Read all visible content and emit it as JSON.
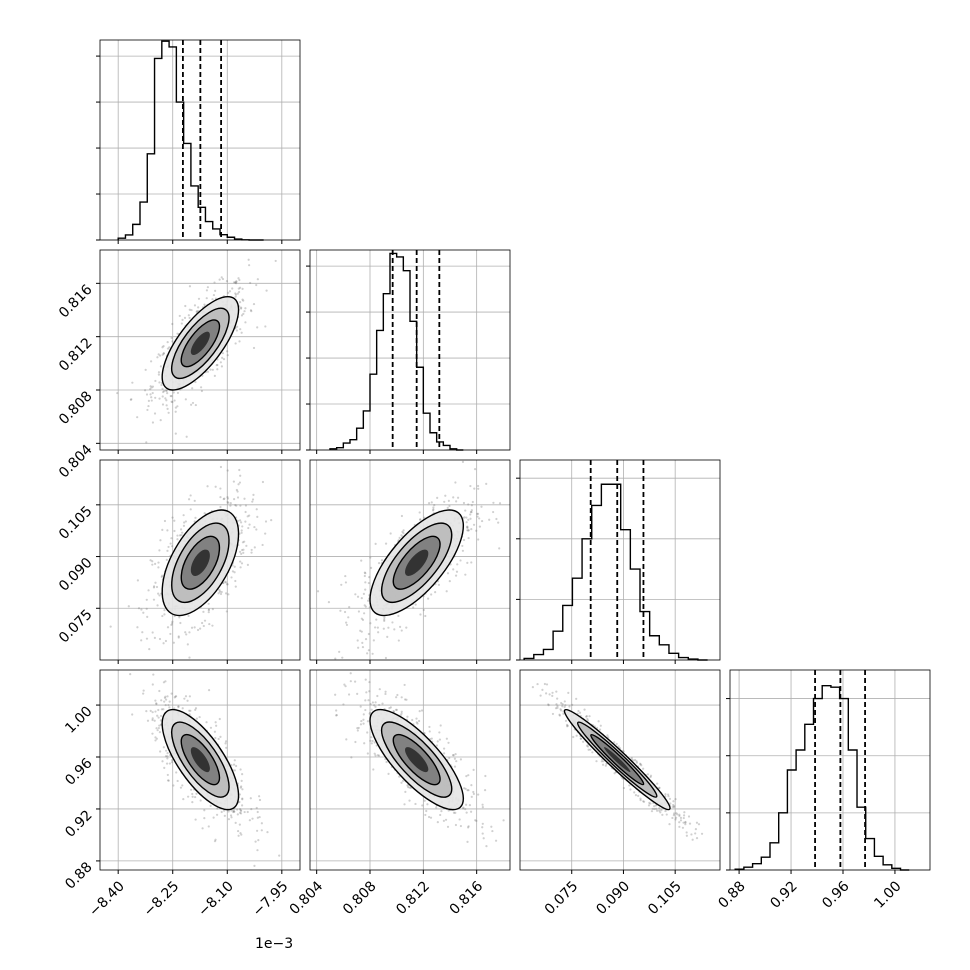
{
  "chart_data": {
    "type": "corner",
    "parameters": [
      {
        "range": [
          -8.45,
          -7.9
        ],
        "ticks": [
          -8.4,
          -8.25,
          -8.1,
          -7.95
        ],
        "tick_labels": [
          "−8.40",
          "−8.25",
          "−8.10",
          "−7.95"
        ],
        "offset_label": "1e−3",
        "hist_ticks": [
          0,
          200,
          400,
          600,
          800
        ],
        "hist_max": 870,
        "quantiles": [
          -8.222,
          -8.174,
          -8.117
        ],
        "hist_edges_start": -8.4,
        "hist_bin_width": 0.02,
        "hist_counts": [
          8,
          22,
          68,
          165,
          375,
          790,
          865,
          840,
          600,
          420,
          235,
          142,
          80,
          48,
          23,
          12,
          4,
          1,
          0,
          0
        ]
      },
      {
        "range": [
          0.8035,
          0.8185
        ],
        "ticks": [
          0.804,
          0.808,
          0.812,
          0.816
        ],
        "tick_labels": [
          "0.804",
          "0.808",
          "0.812",
          "0.816"
        ],
        "offset_label": "",
        "hist_ticks": [
          0,
          200,
          400,
          600,
          800
        ],
        "hist_max": 870,
        "quantiles": [
          0.8097,
          0.8115,
          0.8132
        ],
        "hist_edges_start": 0.805,
        "hist_bin_width": 0.0005,
        "hist_counts": [
          5,
          10,
          30,
          45,
          95,
          170,
          330,
          520,
          680,
          855,
          840,
          780,
          560,
          360,
          160,
          75,
          35,
          20,
          5,
          0
        ]
      },
      {
        "range": [
          0.06,
          0.118
        ],
        "ticks": [
          0.075,
          0.09,
          0.105
        ],
        "tick_labels": [
          "0.075",
          "0.090",
          "0.105"
        ],
        "offset_label": "",
        "hist_ticks": [
          0,
          200,
          400,
          600
        ],
        "hist_max": 660,
        "quantiles": [
          0.0805,
          0.0882,
          0.0958
        ],
        "hist_edges_start": 0.0612,
        "hist_bin_width": 0.0028,
        "hist_counts": [
          5,
          18,
          35,
          95,
          180,
          270,
          400,
          510,
          580,
          580,
          430,
          300,
          160,
          80,
          50,
          22,
          8,
          3,
          0
        ]
      },
      {
        "range": [
          0.873,
          1.027
        ],
        "ticks": [
          0.88,
          0.92,
          0.96,
          1.0
        ],
        "tick_labels": [
          "0.88",
          "0.92",
          "0.96",
          "1.00"
        ],
        "offset_label": "",
        "hist_ticks": [
          0,
          200,
          400,
          600
        ],
        "hist_max": 700,
        "quantiles": [
          0.9385,
          0.958,
          0.977
        ],
        "hist_edges_start": 0.877,
        "hist_bin_width": 0.0067,
        "hist_counts": [
          3,
          10,
          22,
          45,
          95,
          200,
          350,
          420,
          510,
          600,
          645,
          640,
          600,
          420,
          220,
          110,
          48,
          18,
          6,
          0
        ]
      }
    ],
    "correlations": {
      "1-0": 0.72,
      "2-0": 0.55,
      "2-1": 0.7,
      "3-0": -0.72,
      "3-1": -0.78,
      "3-2": -0.97
    },
    "contour_levels_sigma": [
      0.5,
      1.0,
      1.5,
      2.0
    ],
    "grid": true,
    "colors": {
      "line": "#000000",
      "grid": "#b0b0b0",
      "scatter": "#777777"
    }
  }
}
